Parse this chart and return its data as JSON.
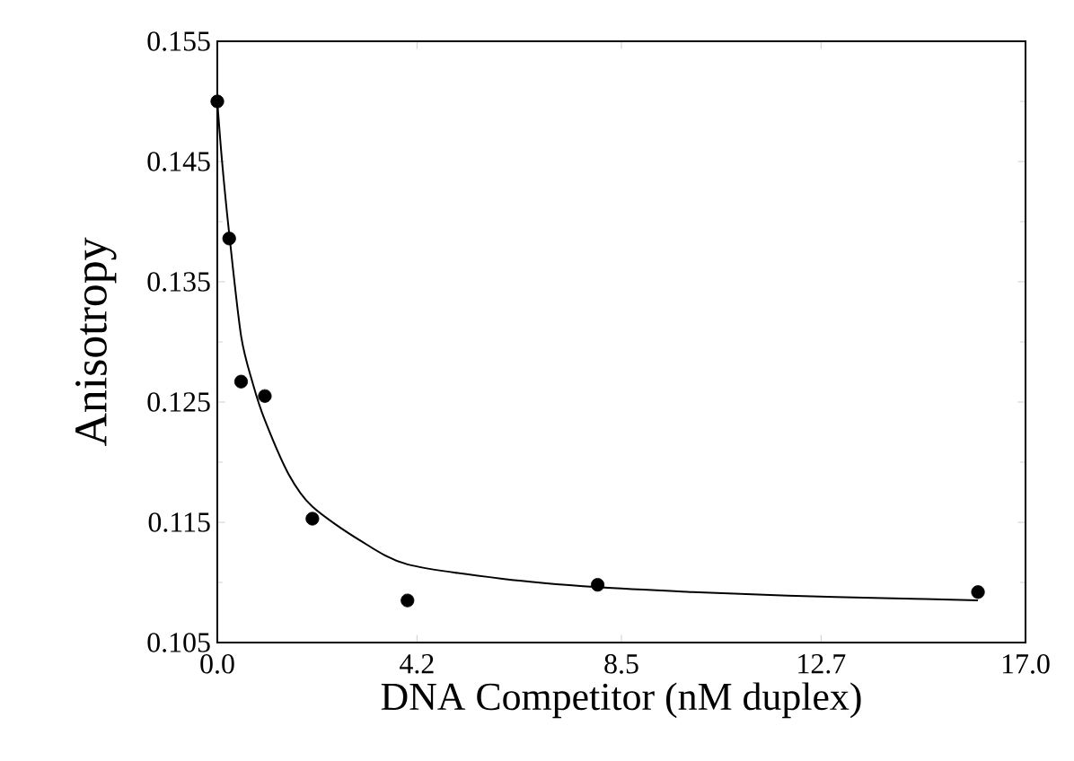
{
  "chart_data": {
    "type": "scatter",
    "xlabel": "DNA Competitor (nM duplex)",
    "ylabel": "Anisotropy",
    "x": [
      0,
      0.25,
      0.5,
      1,
      2,
      4,
      8,
      16
    ],
    "series": [
      {
        "color": "#000000",
        "marker": "circle",
        "values": [
          0.15,
          0.1386,
          0.1267,
          0.1255,
          0.1153,
          0.1085,
          0.1098,
          0.1092
        ]
      },
      {
        "type": "line",
        "color": "#000000",
        "line_style": "solid",
        "x": [
          0,
          0.1,
          0.25,
          0.5,
          0.75,
          1,
          1.5,
          2,
          3,
          4,
          6,
          8,
          10,
          12,
          14,
          16
        ],
        "values": [
          0.15,
          0.145,
          0.139,
          0.1305,
          0.1265,
          0.1235,
          0.119,
          0.1163,
          0.1135,
          0.1115,
          0.1103,
          0.1096,
          0.1092,
          0.1089,
          0.1087,
          0.1085
        ]
      }
    ],
    "xlim": [
      0,
      17
    ],
    "xticks": [
      {
        "value": 0,
        "label": "0.0"
      },
      4.2,
      8.5,
      12.7,
      {
        "value": 17,
        "label": "17.0"
      }
    ],
    "ylim": [
      0.105,
      0.155
    ],
    "yticks": [
      0.105,
      0.115,
      0.125,
      0.135,
      0.145,
      0.155
    ],
    "grid": false
  }
}
